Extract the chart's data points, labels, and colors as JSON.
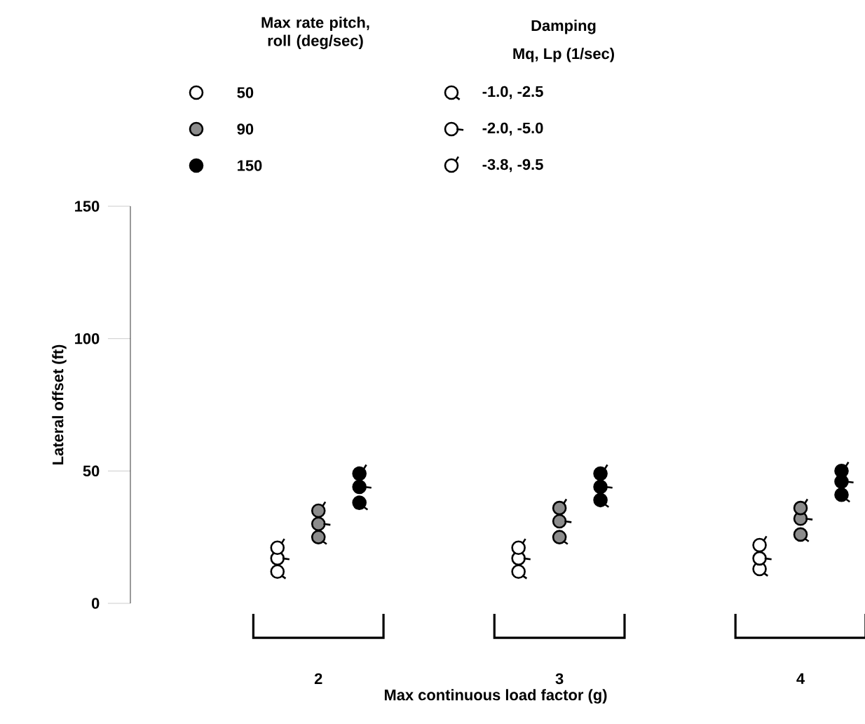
{
  "chart_data": {
    "type": "scatter",
    "xlabel": "Max continuous load factor (g)",
    "ylabel": "Lateral offset (ft)",
    "categories": [
      "2",
      "3",
      "4"
    ],
    "ylim": [
      0,
      150
    ],
    "yticks": [
      0,
      50,
      100,
      150
    ],
    "legend": "top",
    "legend_title": "Max rate pitch, roll (deg/sec)",
    "annotations": [
      "Damping",
      "Mq, Lp (1/sec)",
      "-1.0, -2.5",
      "-2.0, -5.0",
      "-3.8, -9.5"
    ],
    "series": [
      {
        "name": "50",
        "color": "#ffffff",
        "x": [
          "2",
          "2",
          "2",
          "3",
          "3",
          "3",
          "4",
          "4",
          "4"
        ],
        "values": [
          12,
          17,
          21,
          12,
          17,
          21,
          13,
          17,
          22
        ]
      },
      {
        "name": "90",
        "color": "#8c8c8c",
        "x": [
          "2",
          "2",
          "2",
          "3",
          "3",
          "3",
          "4",
          "4",
          "4"
        ],
        "values": [
          25,
          30,
          35,
          25,
          31,
          36,
          26,
          32,
          36
        ]
      },
      {
        "name": "150",
        "color": "#000000",
        "x": [
          "2",
          "2",
          "2",
          "3",
          "3",
          "3",
          "4",
          "4",
          "4"
        ],
        "values": [
          38,
          44,
          49,
          39,
          44,
          49,
          41,
          46,
          50
        ]
      }
    ]
  }
}
